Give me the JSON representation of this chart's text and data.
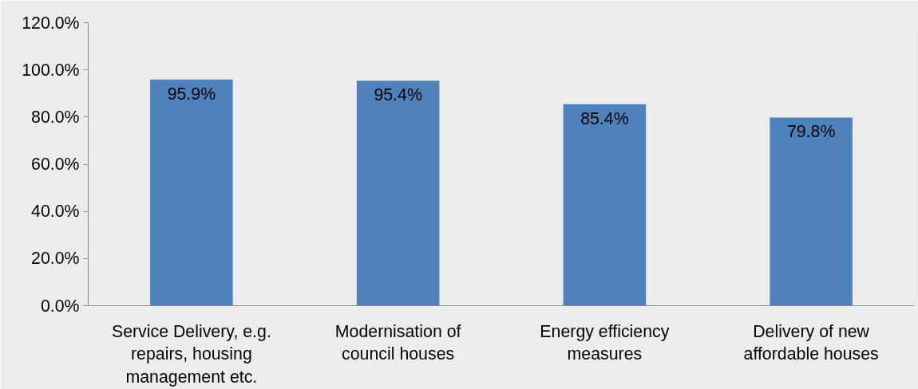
{
  "chart_data": {
    "type": "bar",
    "categories": [
      "Service Delivery, e.g. repairs, housing management etc.",
      "Modernisation of council houses",
      "Energy efficiency measures",
      "Delivery of new affordable houses"
    ],
    "values": [
      95.9,
      95.4,
      85.4,
      79.8
    ],
    "value_labels": [
      "95.9%",
      "95.4%",
      "85.4%",
      "79.8%"
    ],
    "color": "#4f81bd",
    "ylim": [
      0,
      120
    ],
    "yticks": [
      {
        "value": 0,
        "label": "0.0%"
      },
      {
        "value": 20,
        "label": "20.0%"
      },
      {
        "value": 40,
        "label": "40.0%"
      },
      {
        "value": 60,
        "label": "60.0%"
      },
      {
        "value": 80,
        "label": "80.0%"
      },
      {
        "value": 100,
        "label": "100.0%"
      },
      {
        "value": 120,
        "label": "120.0%"
      }
    ],
    "grid": false
  }
}
